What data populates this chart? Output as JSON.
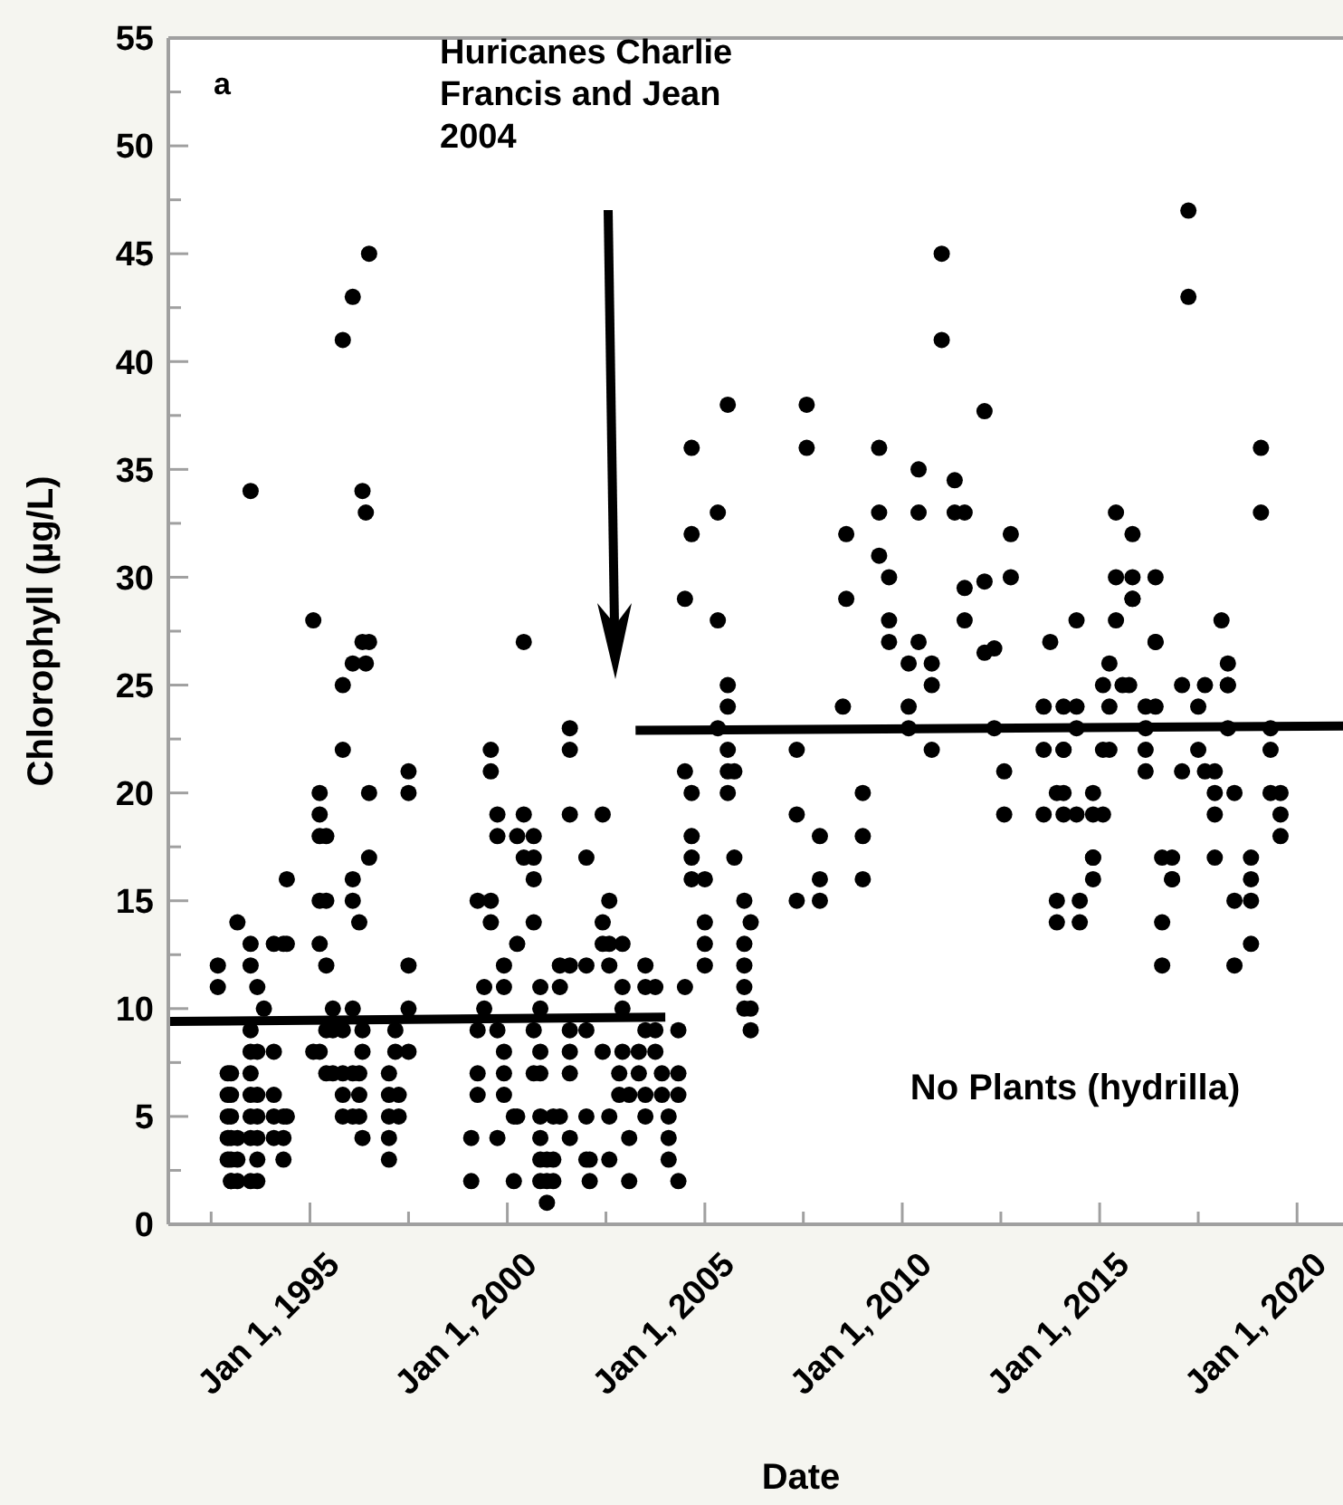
{
  "chart_data": {
    "type": "scatter",
    "xlabel": "Date",
    "ylabel": "Chlorophyll (µg/L)",
    "annotations": [
      "a",
      "Huricanes Charlie\nFrancis and Jean\n2004",
      "No Plants (hydrilla)"
    ],
    "xlim": [
      "1991-06",
      "2021-03"
    ],
    "xticks": [
      {
        "value": "1992-07-01",
        "label": null
      },
      {
        "value": "1995-01-01",
        "label": "Jan 1, 1995"
      },
      {
        "value": "1997-07-01",
        "label": null
      },
      {
        "value": "2000-01-01",
        "label": "Jan 1, 2000"
      },
      {
        "value": "2002-07-01",
        "label": null
      },
      {
        "value": "2005-01-01",
        "label": "Jan 1, 2005"
      },
      {
        "value": "2007-07-01",
        "label": null
      },
      {
        "value": "2010-01-01",
        "label": "Jan 1, 2010"
      },
      {
        "value": "2012-07-01",
        "label": null
      },
      {
        "value": "2015-01-01",
        "label": "Jan 1, 2015"
      },
      {
        "value": "2017-07-01",
        "label": null
      },
      {
        "value": "2020-01-01",
        "label": "Jan 1, 2020"
      }
    ],
    "ylim": [
      0,
      55
    ],
    "yticks": [
      0,
      {
        "value": 2.5,
        "label": null
      },
      5,
      {
        "value": 7.5,
        "label": null
      },
      10,
      {
        "value": 12.5,
        "label": null
      },
      15,
      {
        "value": 17.5,
        "label": null
      },
      20,
      {
        "value": 22.5,
        "label": null
      },
      25,
      {
        "value": 27.5,
        "label": null
      },
      30,
      {
        "value": 32.5,
        "label": null
      },
      35,
      {
        "value": 37.5,
        "label": null
      },
      40,
      {
        "value": 42.5,
        "label": null
      },
      45,
      {
        "value": 47.5,
        "label": null
      },
      50,
      {
        "value": 52.5,
        "label": null
      },
      55
    ],
    "grid": false,
    "series": [
      {
        "type": "scatter",
        "marker": "circle",
        "color": "#000000",
        "x": [
          "1992-09",
          "1992-09",
          "1992-12",
          "1992-12",
          "1992-12",
          "1992-12",
          "1992-12",
          "1993-01",
          "1993-01",
          "1993-01",
          "1993-01",
          "1993-01",
          "1993-01",
          "1993-01",
          "1993-03",
          "1993-03",
          "1993-03",
          "1993-03",
          "1993-07",
          "1993-07",
          "1993-07",
          "1993-07",
          "1993-07",
          "1993-07",
          "1993-07",
          "1993-07",
          "1993-07",
          "1993-07",
          "1993-09",
          "1993-09",
          "1993-09",
          "1993-09",
          "1993-09",
          "1993-09",
          "1993-09",
          "1993-11",
          "1994-02",
          "1994-02",
          "1994-02",
          "1994-02",
          "1994-02",
          "1994-05",
          "1994-05",
          "1994-05",
          "1994-05",
          "1994-06",
          "1994-06",
          "1994-06",
          "1995-02",
          "1995-02",
          "1995-04",
          "1995-04",
          "1995-04",
          "1995-04",
          "1995-04",
          "1995-04",
          "1995-06",
          "1995-06",
          "1995-06",
          "1995-06",
          "1995-06",
          "1995-08",
          "1995-08",
          "1995-08",
          "1995-11",
          "1995-11",
          "1995-11",
          "1995-11",
          "1995-11",
          "1995-11",
          "1995-11",
          "1996-02",
          "1996-02",
          "1996-02",
          "1996-02",
          "1996-02",
          "1996-02",
          "1996-02",
          "1996-04",
          "1996-04",
          "1996-04",
          "1996-04",
          "1996-05",
          "1996-05",
          "1996-05",
          "1996-05",
          "1996-05",
          "1996-06",
          "1996-06",
          "1996-07",
          "1996-07",
          "1996-07",
          "1996-07",
          "1997-01",
          "1997-01",
          "1997-01",
          "1997-01",
          "1997-01",
          "1997-03",
          "1997-03",
          "1997-04",
          "1997-04",
          "1997-07",
          "1997-07",
          "1997-07",
          "1997-07",
          "1997-07",
          "1999-02",
          "1999-02",
          "1999-04",
          "1999-04",
          "1999-04",
          "1999-04",
          "1999-06",
          "1999-06",
          "1999-08",
          "1999-08",
          "1999-08",
          "1999-08",
          "1999-10",
          "1999-10",
          "1999-10",
          "1999-10",
          "1999-12",
          "1999-12",
          "1999-12",
          "1999-12",
          "1999-12",
          "2000-03",
          "2000-03",
          "2000-04",
          "2000-04",
          "2000-04",
          "2000-06",
          "2000-06",
          "2000-06",
          "2000-09",
          "2000-09",
          "2000-09",
          "2000-09",
          "2000-09",
          "2000-09",
          "2000-11",
          "2000-11",
          "2000-11",
          "2000-11",
          "2000-11",
          "2000-11",
          "2000-11",
          "2000-11",
          "2001-01",
          "2001-01",
          "2001-01",
          "2001-03",
          "2001-03",
          "2001-03",
          "2001-05",
          "2001-05",
          "2001-05",
          "2001-08",
          "2001-08",
          "2001-08",
          "2001-08",
          "2001-08",
          "2001-08",
          "2001-08",
          "2001-08",
          "2002-01",
          "2002-01",
          "2002-01",
          "2002-01",
          "2002-01",
          "2002-02",
          "2002-02",
          "2002-06",
          "2002-06",
          "2002-06",
          "2002-06",
          "2002-08",
          "2002-08",
          "2002-08",
          "2002-08",
          "2002-08",
          "2002-11",
          "2002-11",
          "2002-12",
          "2002-12",
          "2002-12",
          "2002-12",
          "2003-02",
          "2003-02",
          "2003-02",
          "2003-05",
          "2003-05",
          "2003-07",
          "2003-07",
          "2003-07",
          "2003-07",
          "2003-07",
          "2003-10",
          "2003-10",
          "2003-10",
          "2003-12",
          "2003-12",
          "2004-02",
          "2004-02",
          "2004-02",
          "2004-05",
          "2004-05",
          "2004-05",
          "2004-05",
          "2004-07",
          "2004-07",
          "2004-07",
          "2004-09",
          "2004-09",
          "2004-09",
          "2004-09",
          "2004-09",
          "2004-09",
          "2005-01",
          "2005-01",
          "2005-01",
          "2005-01",
          "2005-05",
          "2005-05",
          "2005-05",
          "2005-08",
          "2005-08",
          "2005-08",
          "2005-08",
          "2005-08",
          "2005-08",
          "2005-10",
          "2005-10",
          "2006-01",
          "2006-01",
          "2006-01",
          "2006-01",
          "2006-01",
          "2006-03",
          "2006-03",
          "2006-03",
          "2007-05",
          "2007-05",
          "2007-05",
          "2007-08",
          "2007-08",
          "2007-12",
          "2007-12",
          "2007-12",
          "2008-07",
          "2008-08",
          "2008-08",
          "2009-01",
          "2009-01",
          "2009-01",
          "2009-06",
          "2009-06",
          "2009-06",
          "2009-09",
          "2009-09",
          "2009-09",
          "2010-03",
          "2010-03",
          "2010-03",
          "2010-06",
          "2010-06",
          "2010-06",
          "2010-10",
          "2010-10",
          "2010-10",
          "2011-01",
          "2011-01",
          "2011-05",
          "2011-05",
          "2011-08",
          "2011-08",
          "2011-08",
          "2012-02",
          "2012-02",
          "2012-02",
          "2012-05",
          "2012-05",
          "2012-08",
          "2012-08",
          "2012-10",
          "2012-10",
          "2013-08",
          "2013-08",
          "2013-08",
          "2013-10",
          "2013-12",
          "2013-12",
          "2013-12",
          "2014-02",
          "2014-02",
          "2014-02",
          "2014-02",
          "2014-02",
          "2014-06",
          "2014-06",
          "2014-06",
          "2014-06",
          "2014-07",
          "2014-07",
          "2014-11",
          "2014-11",
          "2014-11",
          "2014-11",
          "2014-11",
          "2015-02",
          "2015-02",
          "2015-02",
          "2015-04",
          "2015-04",
          "2015-04",
          "2015-06",
          "2015-06",
          "2015-06",
          "2015-08",
          "2015-10",
          "2015-11",
          "2015-11",
          "2015-11",
          "2015-11",
          "2016-03",
          "2016-03",
          "2016-03",
          "2016-03",
          "2016-06",
          "2016-06",
          "2016-06",
          "2016-06",
          "2016-08",
          "2016-08",
          "2016-08",
          "2016-11",
          "2016-11",
          "2016-11",
          "2017-02",
          "2017-02",
          "2017-04",
          "2017-04",
          "2017-07",
          "2017-07",
          "2017-09",
          "2017-09",
          "2017-12",
          "2017-12",
          "2017-12",
          "2017-12",
          "2018-02",
          "2018-04",
          "2018-04",
          "2018-04",
          "2018-04",
          "2018-06",
          "2018-06",
          "2018-06",
          "2018-11",
          "2018-11",
          "2018-11",
          "2018-11",
          "2019-02",
          "2019-02",
          "2019-05",
          "2019-05",
          "2019-05",
          "2019-08",
          "2019-08",
          "2019-08"
        ],
        "values": [
          12,
          11,
          7,
          6,
          5,
          4,
          3,
          7,
          6,
          5,
          4,
          3,
          2,
          2,
          14,
          4,
          3,
          2,
          34,
          13,
          12,
          9,
          8,
          7,
          6,
          5,
          4,
          2,
          11,
          8,
          6,
          5,
          4,
          3,
          2,
          10,
          13,
          6,
          5,
          4,
          8,
          13,
          5,
          4,
          3,
          16,
          13,
          5,
          28,
          8,
          20,
          19,
          18,
          15,
          13,
          8,
          18,
          15,
          12,
          9,
          7,
          10,
          9,
          7,
          41,
          25,
          22,
          9,
          7,
          6,
          5,
          43,
          26,
          16,
          15,
          10,
          7,
          5,
          14,
          7,
          6,
          5,
          34,
          27,
          9,
          8,
          4,
          26,
          33,
          45,
          27,
          20,
          17,
          7,
          6,
          5,
          4,
          3,
          9,
          8,
          6,
          5,
          21,
          20,
          12,
          10,
          8,
          4,
          2,
          15,
          9,
          7,
          6,
          11,
          10,
          22,
          21,
          15,
          14,
          19,
          18,
          4,
          9,
          12,
          11,
          8,
          7,
          6,
          2,
          5,
          18,
          13,
          5,
          27,
          19,
          17,
          18,
          17,
          16,
          14,
          9,
          7,
          11,
          10,
          8,
          7,
          5,
          4,
          3,
          2,
          3,
          2,
          1,
          3,
          2,
          5,
          12,
          11,
          5,
          23,
          22,
          19,
          12,
          9,
          8,
          7,
          4,
          17,
          12,
          5,
          3,
          9,
          3,
          2,
          19,
          14,
          13,
          8,
          15,
          13,
          12,
          5,
          3,
          7,
          6,
          13,
          11,
          10,
          8,
          6,
          4,
          2,
          8,
          7,
          12,
          9,
          11,
          6,
          5,
          11,
          9,
          8,
          7,
          6,
          5,
          4,
          3,
          9,
          7,
          6,
          2,
          21,
          11,
          29,
          36,
          32,
          20,
          18,
          17,
          16,
          16,
          14,
          13,
          12,
          33,
          28,
          23,
          38,
          25,
          24,
          22,
          21,
          20,
          21,
          17,
          15,
          13,
          12,
          11,
          10,
          14,
          10,
          9,
          22,
          19,
          15,
          38,
          36,
          18,
          16,
          15,
          24,
          32,
          29,
          20,
          18,
          16,
          36,
          33,
          31,
          30,
          28,
          27,
          26,
          24,
          23,
          35,
          33,
          27,
          26,
          25,
          22,
          45,
          41,
          34.5,
          33,
          33,
          29.5,
          28,
          37.7,
          29.8,
          26.5,
          26.7,
          23,
          21,
          19,
          32,
          30,
          24,
          22,
          19,
          27,
          20,
          15,
          14,
          24,
          22,
          22,
          19,
          20,
          28,
          24,
          23,
          19,
          15,
          14,
          20,
          19,
          17,
          17,
          16,
          25,
          22,
          19,
          26,
          24,
          22,
          33,
          30,
          28,
          25,
          25,
          32,
          30,
          29,
          29,
          24,
          23,
          22,
          21,
          30,
          27,
          27,
          24,
          14,
          12,
          17,
          17,
          16,
          16,
          25,
          21,
          47,
          43,
          24,
          22,
          25,
          21,
          21,
          20,
          19,
          17,
          28,
          26,
          25,
          25,
          23,
          20,
          15,
          12,
          17,
          16,
          15,
          13,
          36,
          33,
          23,
          22,
          20,
          20,
          19,
          18
        ]
      },
      {
        "type": "line",
        "color": "#000000",
        "line_style": "solid",
        "x": [
          "1991-06",
          "2004-01"
        ],
        "values": [
          9.4,
          9.6
        ]
      },
      {
        "type": "line",
        "color": "#000000",
        "line_style": "solid",
        "x": [
          "2003-04",
          "2021-03"
        ],
        "values": [
          22.9,
          23.1
        ]
      }
    ]
  }
}
